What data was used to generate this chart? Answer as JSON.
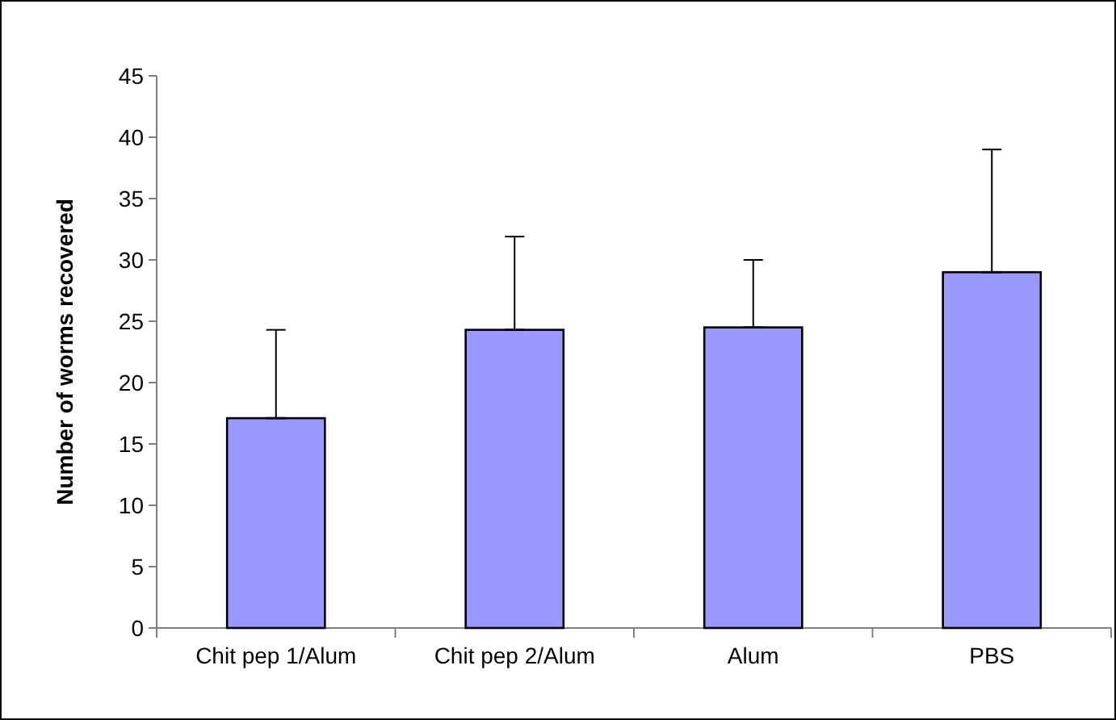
{
  "chart_data": {
    "type": "bar",
    "ylabel": "Number of worms recovered",
    "categories": [
      "Chit pep 1/Alum",
      "Chit pep 2/Alum",
      "Alum",
      "PBS"
    ],
    "values": [
      17.1,
      24.3,
      24.5,
      29.0
    ],
    "errors": [
      [
        17.1,
        24.3
      ],
      [
        24.3,
        31.9
      ],
      [
        24.5,
        30.0
      ],
      [
        29.0,
        39.0
      ]
    ],
    "color": "#9999ff",
    "ylim": [
      0,
      45
    ],
    "yticks": [
      0,
      5,
      10,
      15,
      20,
      25,
      30,
      35,
      40,
      45
    ],
    "grid": false
  }
}
